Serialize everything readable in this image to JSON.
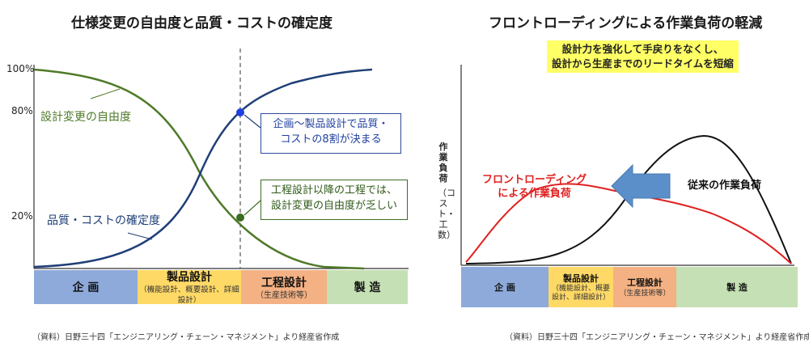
{
  "left": {
    "title": "仕様変更の自由度と品質・コストの確定度",
    "y_ticks": [
      "100%",
      "80%",
      "20%"
    ],
    "series": {
      "freedom": {
        "label": "設計変更の自由度",
        "color": "#4f7a28"
      },
      "quality": {
        "label": "品質・コストの確定度",
        "color": "#1f3f77"
      }
    },
    "callouts": {
      "c1_line1": "企画～製品設計で品質・",
      "c1_line2": "コストの8割が決まる",
      "c2_line1": "工程設計以降の工程では、",
      "c2_line2": "設計変更の自由度が乏しい"
    },
    "stages": [
      {
        "main": "企 画",
        "sub": "",
        "color": "#8eaadb"
      },
      {
        "main": "製品設計",
        "sub": "（機能設計、概要設計、詳細設計）",
        "color": "#ffd966"
      },
      {
        "main": "工程設計",
        "sub": "（生産技術等）",
        "color": "#f4b183"
      },
      {
        "main": "製 造",
        "sub": "",
        "color": "#c5e0b4"
      }
    ],
    "source": "（資料）日野三十四「エンジニアリング・チェーン・マネジメント」より経産省作成"
  },
  "right": {
    "title": "フロントローディングによる作業負荷の軽減",
    "subtitle_line1": "設計力を強化して手戻りをなくし、",
    "subtitle_line2": "設計から生産までのリードタイムを短縮",
    "y_label_main": "作業負荷",
    "y_label_sub": "（コスト・工数）",
    "series": {
      "front": {
        "label_line1": "フロントローディング",
        "label_line2": "による作業負荷",
        "color": "#e02020"
      },
      "conventional": {
        "label": "従来の作業負荷",
        "color": "#111111"
      }
    },
    "arrow_color": "#5b8fc9",
    "stages": [
      {
        "main": "企 画",
        "sub": "",
        "color": "#8eaadb"
      },
      {
        "main": "製品設計",
        "sub": "（機能設計、概要設計、詳細設計）",
        "color": "#ffd966"
      },
      {
        "main": "工程設計",
        "sub": "（生産技術等）",
        "color": "#f4b183"
      },
      {
        "main": "製 造",
        "sub": "",
        "color": "#c5e0b4"
      }
    ],
    "source": "（資料）日野三十四「エンジニアリング・チェーン・マネジメント」より経産省作成"
  }
}
